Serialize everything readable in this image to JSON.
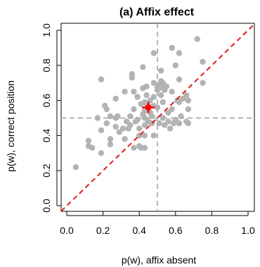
{
  "chart_data": {
    "type": "scatter",
    "title": "(a) Affix effect",
    "xlabel": "p(w), affix absent",
    "ylabel": "p(w), correct position",
    "xlim": [
      0.0,
      1.0
    ],
    "ylim": [
      0.0,
      1.0
    ],
    "xticks": [
      "0.0",
      "0.2",
      "0.4",
      "0.6",
      "0.8",
      "1.0"
    ],
    "yticks": [
      "0.0",
      "0.2",
      "0.4",
      "0.6",
      "0.8",
      "1.0"
    ],
    "grid": false,
    "colors": {
      "points": "#b3b3b3",
      "highlight": "#ff0000",
      "diagonal": "#e31a1c",
      "reference": "#b3b3b3"
    },
    "reference_lines": {
      "x": 0.5,
      "y": 0.5
    },
    "diagonal": {
      "from": [
        0.0,
        0.0
      ],
      "to": [
        1.0,
        1.0
      ]
    },
    "mean_point": {
      "x": 0.45,
      "y": 0.56
    },
    "points": [
      [
        0.05,
        0.22
      ],
      [
        0.12,
        0.37
      ],
      [
        0.12,
        0.34
      ],
      [
        0.14,
        0.33
      ],
      [
        0.17,
        0.5
      ],
      [
        0.19,
        0.3
      ],
      [
        0.19,
        0.43
      ],
      [
        0.19,
        0.72
      ],
      [
        0.21,
        0.57
      ],
      [
        0.22,
        0.55
      ],
      [
        0.22,
        0.47
      ],
      [
        0.24,
        0.51
      ],
      [
        0.24,
        0.38
      ],
      [
        0.24,
        0.35
      ],
      [
        0.27,
        0.5
      ],
      [
        0.27,
        0.61
      ],
      [
        0.27,
        0.45
      ],
      [
        0.28,
        0.51
      ],
      [
        0.29,
        0.42
      ],
      [
        0.31,
        0.44
      ],
      [
        0.32,
        0.65
      ],
      [
        0.32,
        0.38
      ],
      [
        0.33,
        0.48
      ],
      [
        0.34,
        0.44
      ],
      [
        0.35,
        0.51
      ],
      [
        0.35,
        0.46
      ],
      [
        0.36,
        0.75
      ],
      [
        0.36,
        0.73
      ],
      [
        0.37,
        0.65
      ],
      [
        0.37,
        0.55
      ],
      [
        0.37,
        0.33
      ],
      [
        0.38,
        0.48
      ],
      [
        0.39,
        0.62
      ],
      [
        0.39,
        0.49
      ],
      [
        0.4,
        0.44
      ],
      [
        0.4,
        0.4
      ],
      [
        0.4,
        0.34
      ],
      [
        0.41,
        0.58
      ],
      [
        0.41,
        0.33
      ],
      [
        0.42,
        0.79
      ],
      [
        0.42,
        0.67
      ],
      [
        0.42,
        0.52
      ],
      [
        0.43,
        0.59
      ],
      [
        0.43,
        0.54
      ],
      [
        0.43,
        0.5
      ],
      [
        0.43,
        0.46
      ],
      [
        0.43,
        0.4
      ],
      [
        0.43,
        0.33
      ],
      [
        0.44,
        0.68
      ],
      [
        0.44,
        0.63
      ],
      [
        0.44,
        0.58
      ],
      [
        0.45,
        0.57
      ],
      [
        0.45,
        0.48
      ],
      [
        0.46,
        0.6
      ],
      [
        0.46,
        0.53
      ],
      [
        0.47,
        0.51
      ],
      [
        0.47,
        0.47
      ],
      [
        0.48,
        0.87
      ],
      [
        0.48,
        0.7
      ],
      [
        0.48,
        0.62
      ],
      [
        0.48,
        0.57
      ],
      [
        0.48,
        0.4
      ],
      [
        0.5,
        0.68
      ],
      [
        0.5,
        0.66
      ],
      [
        0.5,
        0.56
      ],
      [
        0.51,
        0.69
      ],
      [
        0.51,
        0.47
      ],
      [
        0.52,
        0.77
      ],
      [
        0.52,
        0.71
      ],
      [
        0.52,
        0.63
      ],
      [
        0.53,
        0.7
      ],
      [
        0.53,
        0.67
      ],
      [
        0.53,
        0.59
      ],
      [
        0.53,
        0.5
      ],
      [
        0.54,
        0.66
      ],
      [
        0.54,
        0.46
      ],
      [
        0.55,
        0.68
      ],
      [
        0.56,
        0.53
      ],
      [
        0.56,
        0.48
      ],
      [
        0.57,
        0.44
      ],
      [
        0.58,
        0.9
      ],
      [
        0.58,
        0.65
      ],
      [
        0.58,
        0.55
      ],
      [
        0.59,
        0.47
      ],
      [
        0.6,
        0.8
      ],
      [
        0.6,
        0.49
      ],
      [
        0.61,
        0.6
      ],
      [
        0.62,
        0.87
      ],
      [
        0.62,
        0.72
      ],
      [
        0.62,
        0.59
      ],
      [
        0.62,
        0.47
      ],
      [
        0.63,
        0.51
      ],
      [
        0.64,
        0.61
      ],
      [
        0.66,
        0.48
      ],
      [
        0.66,
        0.63
      ],
      [
        0.67,
        0.6
      ],
      [
        0.67,
        0.55
      ],
      [
        0.67,
        0.47
      ],
      [
        0.72,
        0.95
      ],
      [
        0.75,
        0.82
      ],
      [
        0.75,
        0.7
      ]
    ]
  }
}
